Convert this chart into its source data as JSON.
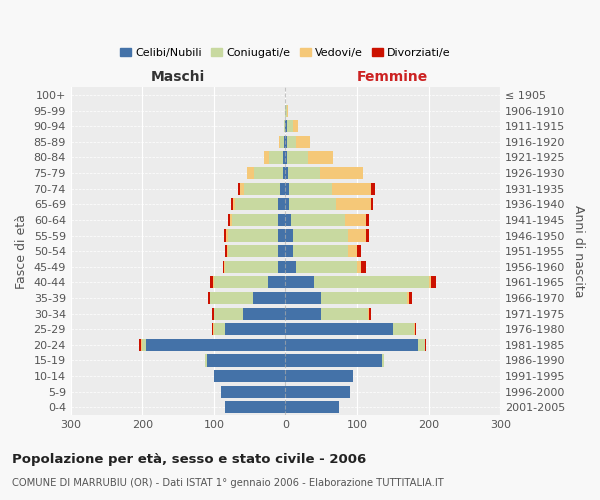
{
  "age_groups": [
    "0-4",
    "5-9",
    "10-14",
    "15-19",
    "20-24",
    "25-29",
    "30-34",
    "35-39",
    "40-44",
    "45-49",
    "50-54",
    "55-59",
    "60-64",
    "65-69",
    "70-74",
    "75-79",
    "80-84",
    "85-89",
    "90-94",
    "95-99",
    "100+"
  ],
  "birth_years": [
    "2001-2005",
    "1996-2000",
    "1991-1995",
    "1986-1990",
    "1981-1985",
    "1976-1980",
    "1971-1975",
    "1966-1970",
    "1961-1965",
    "1956-1960",
    "1951-1955",
    "1946-1950",
    "1941-1945",
    "1936-1940",
    "1931-1935",
    "1926-1930",
    "1921-1925",
    "1916-1920",
    "1911-1915",
    "1906-1910",
    "≤ 1905"
  ],
  "male": {
    "celibi": [
      85,
      90,
      100,
      110,
      195,
      85,
      60,
      45,
      25,
      10,
      10,
      10,
      10,
      10,
      8,
      4,
      3,
      2,
      0,
      0,
      0
    ],
    "coniugati": [
      0,
      0,
      0,
      2,
      5,
      15,
      40,
      60,
      75,
      75,
      70,
      70,
      65,
      60,
      50,
      40,
      20,
      5,
      2,
      0,
      0
    ],
    "vedovi": [
      0,
      0,
      0,
      0,
      2,
      1,
      0,
      1,
      1,
      1,
      2,
      3,
      3,
      3,
      5,
      10,
      7,
      2,
      0,
      0,
      0
    ],
    "divorziati": [
      0,
      0,
      0,
      0,
      2,
      1,
      3,
      2,
      5,
      2,
      3,
      3,
      2,
      3,
      3,
      0,
      0,
      0,
      0,
      0,
      0
    ]
  },
  "female": {
    "nubili": [
      75,
      90,
      95,
      135,
      185,
      150,
      50,
      50,
      40,
      15,
      10,
      10,
      8,
      5,
      5,
      3,
      2,
      2,
      2,
      0,
      0
    ],
    "coniugate": [
      0,
      0,
      0,
      3,
      10,
      30,
      65,
      120,
      160,
      85,
      78,
      78,
      75,
      65,
      60,
      45,
      30,
      12,
      8,
      2,
      0
    ],
    "vedove": [
      0,
      0,
      0,
      0,
      0,
      1,
      1,
      2,
      3,
      5,
      12,
      25,
      30,
      50,
      55,
      60,
      35,
      20,
      8,
      2,
      0
    ],
    "divorziate": [
      0,
      0,
      0,
      0,
      1,
      1,
      3,
      5,
      8,
      7,
      5,
      4,
      3,
      2,
      5,
      0,
      0,
      0,
      0,
      0,
      0
    ]
  },
  "colors": {
    "celibi": "#4472a8",
    "coniugati": "#c8d9a0",
    "vedovi": "#f5c878",
    "divorziati": "#cc1100"
  },
  "xlim": 300,
  "title": "Popolazione per età, sesso e stato civile - 2006",
  "subtitle": "COMUNE DI MARRUBIU (OR) - Dati ISTAT 1° gennaio 2006 - Elaborazione TUTTITALIA.IT",
  "ylabel_left": "Fasce di età",
  "ylabel_right": "Anni di nascita",
  "xlabel_maschi": "Maschi",
  "xlabel_femmine": "Femmine",
  "legend_labels": [
    "Celibi/Nubili",
    "Coniugati/e",
    "Vedovi/e",
    "Divorziati/e"
  ],
  "bg_color": "#f8f8f8",
  "plot_bg": "#ececec"
}
